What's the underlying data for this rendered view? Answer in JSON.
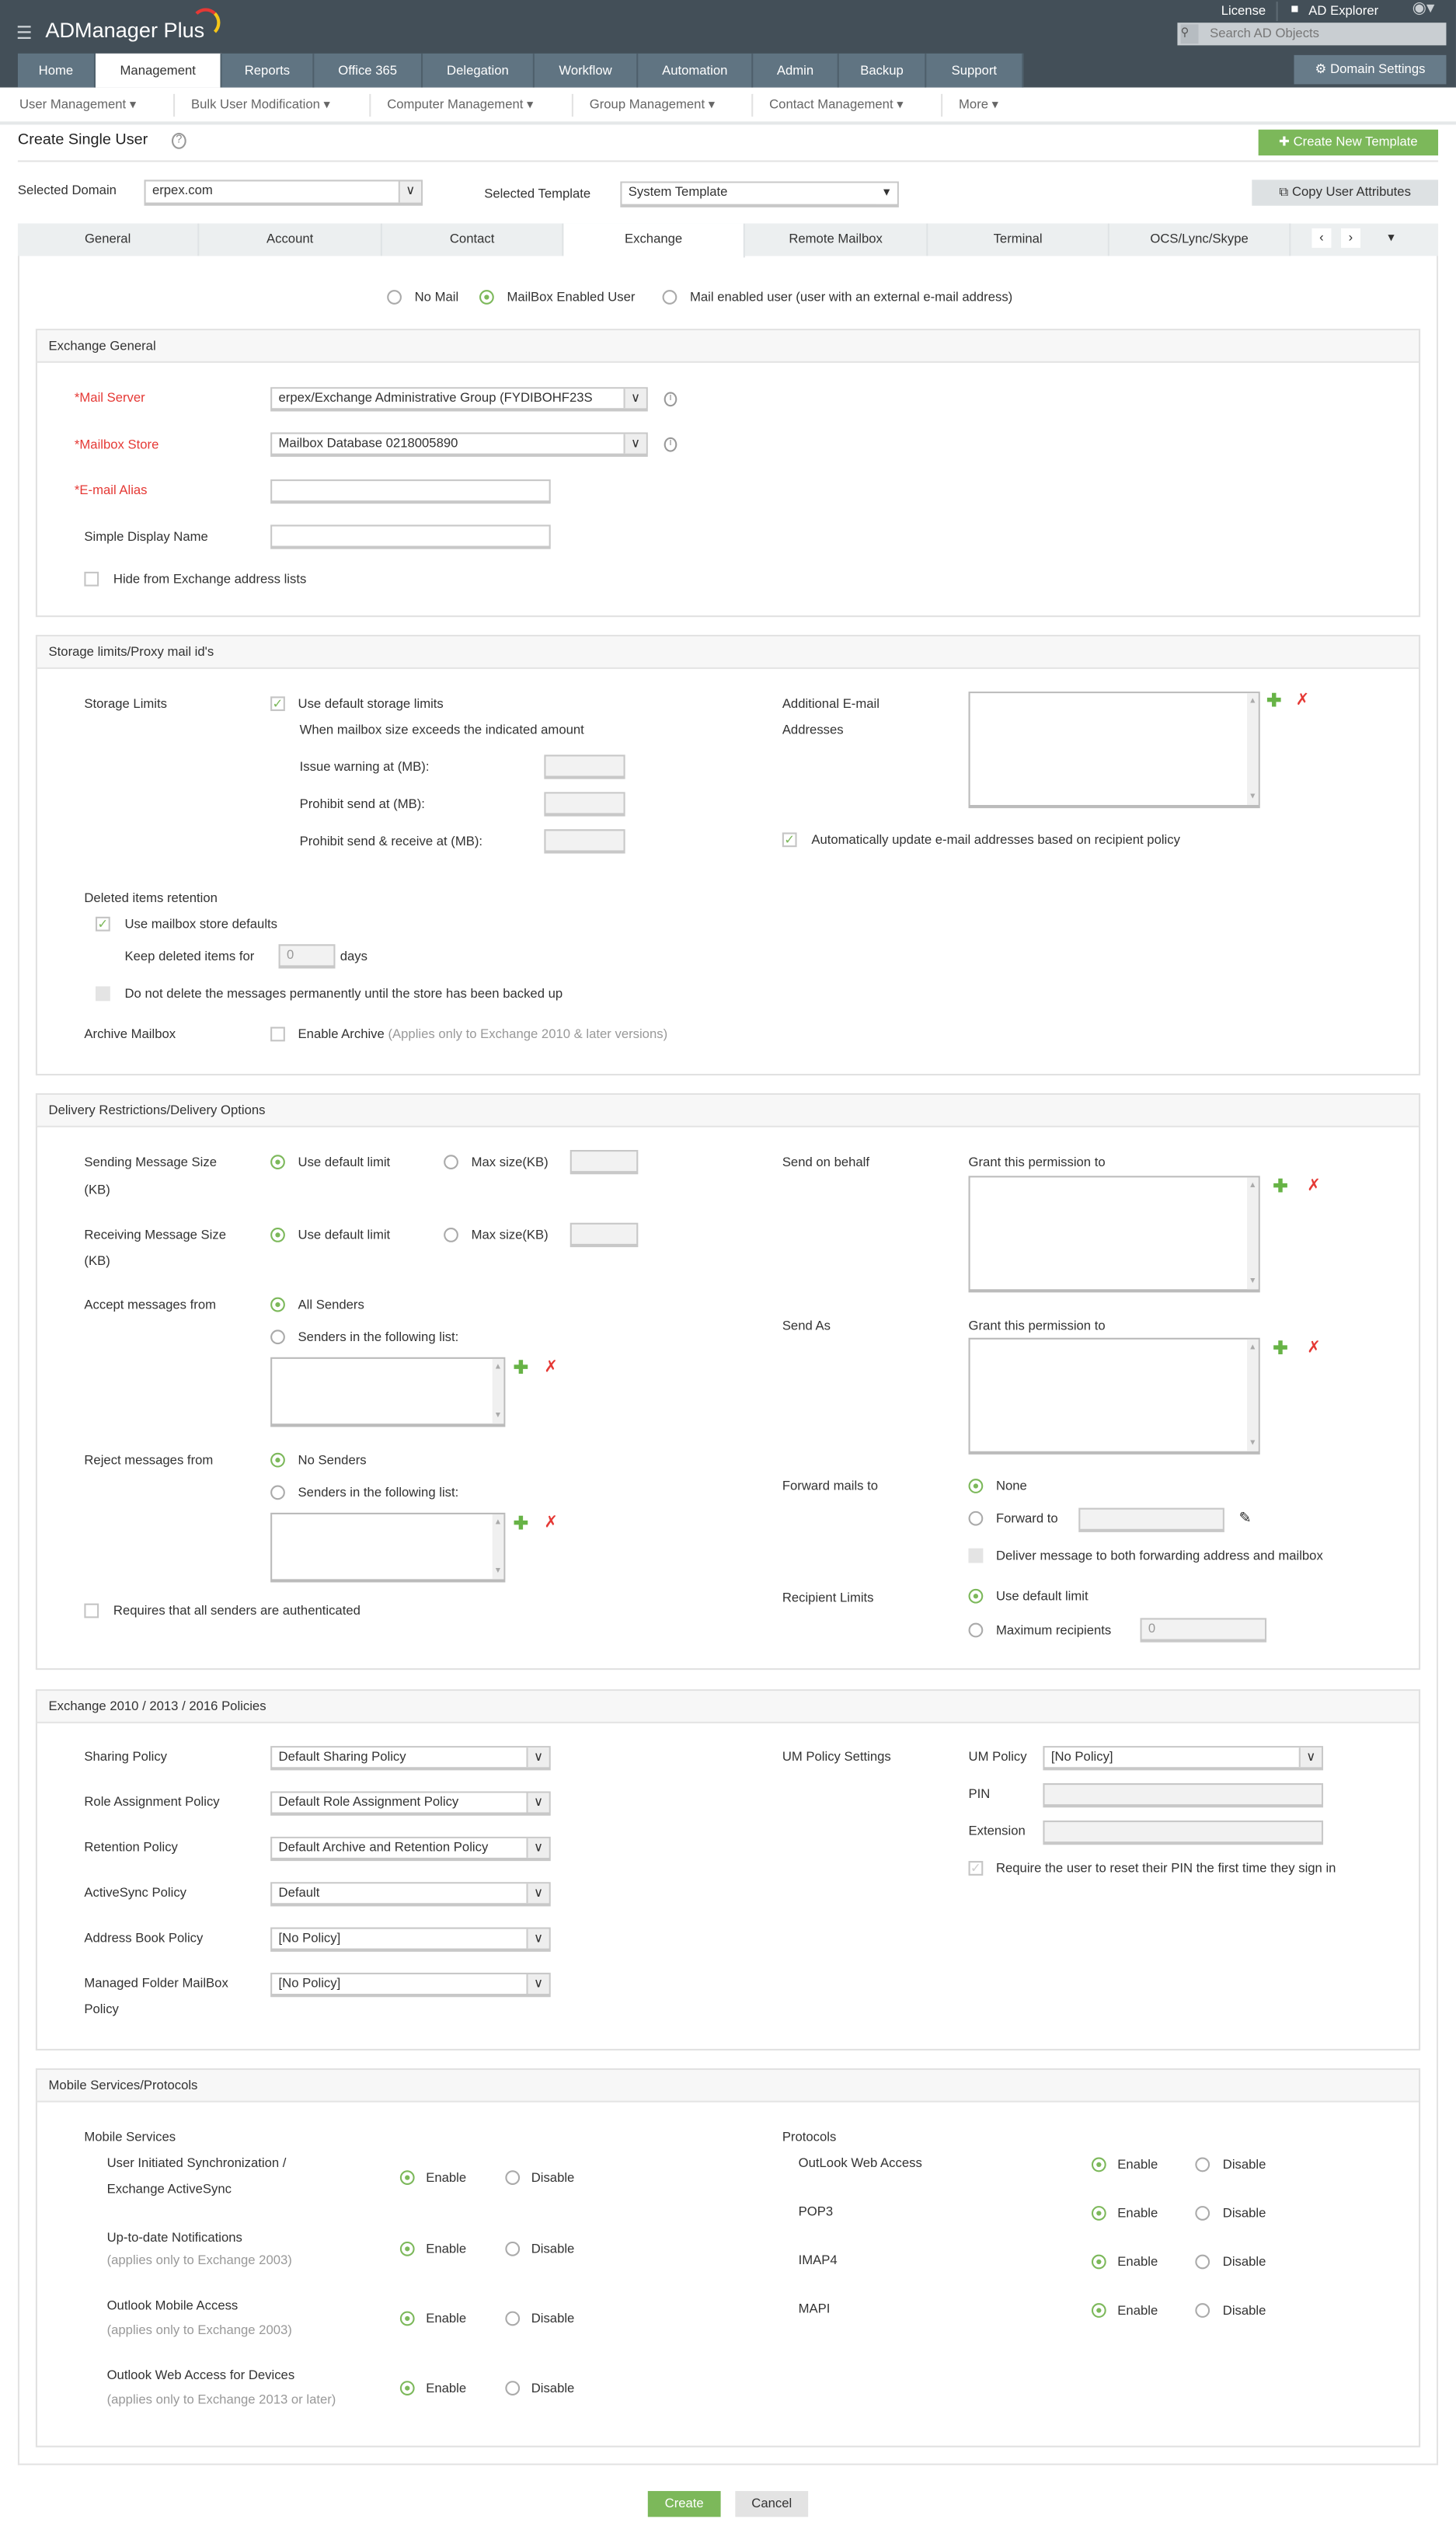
{
  "header": {
    "logo": "ADManager Plus",
    "license": "License",
    "ad_explorer": "AD Explorer",
    "search_placeholder": "Search AD Objects",
    "domain_settings": "Domain Settings"
  },
  "nav": [
    "Home",
    "Management",
    "Reports",
    "Office 365",
    "Delegation",
    "Workflow",
    "Automation",
    "Admin",
    "Backup",
    "Support"
  ],
  "subnav": [
    "User Management",
    "Bulk User Modification",
    "Computer Management",
    "Group Management",
    "Contact Management",
    "More"
  ],
  "page": {
    "title": "Create Single User",
    "create_template": "Create New Template",
    "domain_label": "Selected Domain",
    "domain_value": "erpex.com",
    "template_label": "Selected Template",
    "template_value": "System Template",
    "copy_attrs": "Copy User Attributes"
  },
  "tabs": [
    "General",
    "Account",
    "Contact",
    "Exchange",
    "Remote Mailbox",
    "Terminal",
    "OCS/Lync/Skype"
  ],
  "active_tab": "Exchange",
  "mail_type": {
    "options": [
      "No Mail",
      "MailBox Enabled User",
      "Mail enabled user (user with an external e-mail address)"
    ],
    "selected": "MailBox Enabled User"
  },
  "exchange_general": {
    "title": "Exchange General",
    "mail_server_label": "Mail Server",
    "mail_server_value": "erpex/Exchange Administrative Group (FYDIBOHF23S",
    "mailbox_store_label": "Mailbox Store",
    "mailbox_store_value": "Mailbox Database 0218005890",
    "alias_label": "E-mail Alias",
    "display_name_label": "Simple Display Name",
    "hide_label": "Hide from Exchange address lists"
  },
  "storage": {
    "title": "Storage limits/Proxy mail id's",
    "storage_limits": "Storage Limits",
    "use_default": "Use default storage limits",
    "when_exceeds": "When mailbox size exceeds the indicated amount",
    "issue_warning": "Issue warning at (MB):",
    "prohibit_send": "Prohibit send at (MB):",
    "prohibit_send_receive": "Prohibit send & receive at (MB):",
    "additional_email_1": "Additional E-mail",
    "additional_email_2": "Addresses",
    "auto_update": "Automatically update e-mail addresses based on recipient policy",
    "deleted_retention": "Deleted items retention",
    "use_store_defaults": "Use mailbox store defaults",
    "keep_deleted": "Keep deleted items for",
    "keep_days_value": "0",
    "days": "days",
    "do_not_delete": "Do not delete the messages permanently until the store has been backed up",
    "archive_mailbox": "Archive Mailbox",
    "enable_archive": "Enable Archive",
    "archive_note": "(Applies only to Exchange 2010 & later versions)"
  },
  "delivery": {
    "title": "Delivery Restrictions/Delivery Options",
    "sending_size_1": "Sending Message Size",
    "sending_size_2": "(KB)",
    "receiving_size_1": "Receiving Message Size",
    "receiving_size_2": "(KB)",
    "use_default_limit": "Use default limit",
    "max_size": "Max size(KB)",
    "accept_from": "Accept messages from",
    "all_senders": "All Senders",
    "senders_list": "Senders in the following list:",
    "reject_from": "Reject messages from",
    "no_senders": "No Senders",
    "require_auth": "Requires that all senders are authenticated",
    "send_on_behalf": "Send on behalf",
    "grant_permission": "Grant this permission to",
    "send_as": "Send As",
    "forward_mails": "Forward mails to",
    "none": "None",
    "forward_to": "Forward to",
    "deliver_both": "Deliver message to both forwarding address and mailbox",
    "recipient_limits": "Recipient Limits",
    "max_recipients": "Maximum recipients",
    "max_recipients_value": "0"
  },
  "policies": {
    "title": "Exchange 2010 / 2013 / 2016 Policies",
    "rows": [
      {
        "label": "Sharing Policy",
        "value": "Default Sharing Policy"
      },
      {
        "label": "Role Assignment Policy",
        "value": "Default Role Assignment Policy"
      },
      {
        "label": "Retention Policy",
        "value": "Default Archive and Retention Policy"
      },
      {
        "label": "ActiveSync Policy",
        "value": "Default"
      },
      {
        "label": "Address Book Policy",
        "value": "[No Policy]"
      },
      {
        "label": "Managed Folder MailBox",
        "label2": "Policy",
        "value": "[No Policy]"
      }
    ],
    "um_settings": "UM Policy Settings",
    "um_policy": "UM Policy",
    "um_policy_value": "[No Policy]",
    "pin": "PIN",
    "extension": "Extension",
    "reset_pin": "Require the user to reset their PIN the first time they sign in"
  },
  "mobile": {
    "title": "Mobile Services/Protocols",
    "services_label": "Mobile Services",
    "enable": "Enable",
    "disable": "Disable",
    "services": [
      {
        "line1": "User Initiated Synchronization /",
        "line2": "Exchange ActiveSync"
      },
      {
        "line1": "Up-to-date Notifications",
        "line2": "(applies only to Exchange 2003)"
      },
      {
        "line1": "Outlook Mobile Access",
        "line2": "(applies only to Exchange 2003)"
      },
      {
        "line1": "Outlook Web Access for Devices",
        "line2": "(applies only to Exchange 2013 or later)"
      }
    ],
    "protocols_label": "Protocols",
    "protocols": [
      "OutLook Web Access",
      "POP3",
      "IMAP4",
      "MAPI"
    ]
  },
  "footer": {
    "create": "Create",
    "cancel": "Cancel"
  },
  "colors": {
    "header": "#434f58",
    "nav": "#607482",
    "accent_green": "#7cb85a",
    "required": "#e53935"
  }
}
